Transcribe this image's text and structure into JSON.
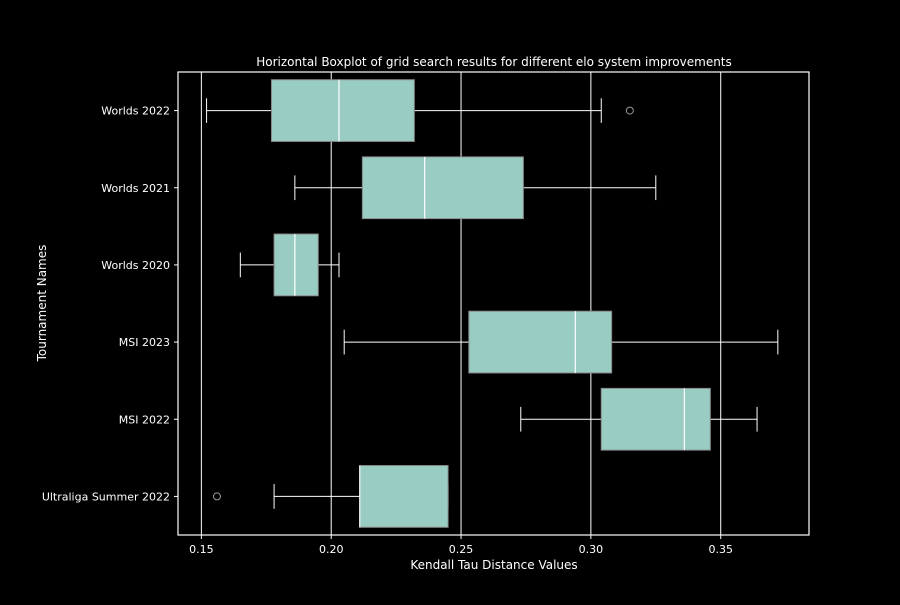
{
  "chart_data": {
    "type": "boxplot",
    "orientation": "horizontal",
    "title": "Horizontal Boxplot of grid search results for different elo system improvements",
    "xlabel": "Kendall Tau Distance Values",
    "ylabel": "Tournament Names",
    "xlim": [
      0.141,
      0.384
    ],
    "xticks": [
      0.15,
      0.2,
      0.25,
      0.3,
      0.35
    ],
    "xtick_labels": [
      "0.15",
      "0.20",
      "0.25",
      "0.30",
      "0.35"
    ],
    "grid": "vertical",
    "categories": [
      "Worlds 2022",
      "Worlds 2021",
      "Worlds 2020",
      "MSI 2023",
      "MSI 2022",
      "Ultraliga Summer 2022"
    ],
    "boxes": [
      {
        "name": "Worlds 2022",
        "whisker_low": 0.152,
        "q1": 0.177,
        "median": 0.203,
        "q3": 0.232,
        "whisker_high": 0.304,
        "outliers": [
          0.315
        ]
      },
      {
        "name": "Worlds 2021",
        "whisker_low": 0.186,
        "q1": 0.212,
        "median": 0.236,
        "q3": 0.274,
        "whisker_high": 0.325,
        "outliers": []
      },
      {
        "name": "Worlds 2020",
        "whisker_low": 0.165,
        "q1": 0.178,
        "median": 0.186,
        "q3": 0.195,
        "whisker_high": 0.203,
        "outliers": []
      },
      {
        "name": "MSI 2023",
        "whisker_low": 0.205,
        "q1": 0.253,
        "median": 0.294,
        "q3": 0.308,
        "whisker_high": 0.372,
        "outliers": []
      },
      {
        "name": "MSI 2022",
        "whisker_low": 0.273,
        "q1": 0.304,
        "median": 0.336,
        "q3": 0.346,
        "whisker_high": 0.364,
        "outliers": []
      },
      {
        "name": "Ultraliga Summer 2022",
        "whisker_low": 0.178,
        "q1": 0.211,
        "median": 0.211,
        "q3": 0.245,
        "whisker_high": 0.245,
        "outliers": [
          0.156
        ]
      }
    ],
    "colors": {
      "background": "#000000",
      "box_fill": "#99cdc4",
      "box_edge": "#8a8a8a",
      "line": "#ffffff",
      "outlier_edge": "#9a9a9a"
    }
  }
}
